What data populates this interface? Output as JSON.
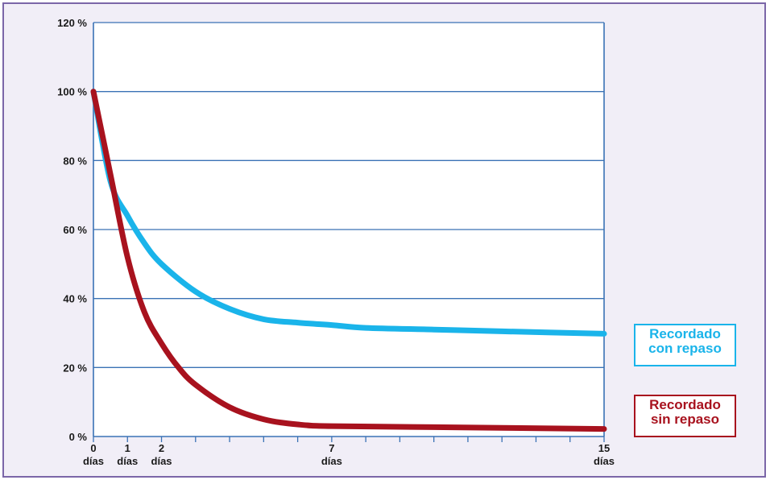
{
  "chart_data": {
    "type": "line",
    "x_ticks": [
      {
        "x": 0,
        "lines": [
          "0",
          "días"
        ]
      },
      {
        "x": 1,
        "lines": [
          "1",
          "días"
        ]
      },
      {
        "x": 2,
        "lines": [
          "2",
          "días"
        ]
      },
      {
        "x": 7,
        "lines": [
          "7",
          "días"
        ]
      },
      {
        "x": 15,
        "lines": [
          "15",
          "días"
        ]
      }
    ],
    "y_ticks": [
      {
        "y": 0,
        "label": "0 %"
      },
      {
        "y": 20,
        "label": "20 %"
      },
      {
        "y": 40,
        "label": "40 %"
      },
      {
        "y": 60,
        "label": "60 %"
      },
      {
        "y": 80,
        "label": "80 %"
      },
      {
        "y": 100,
        "label": "100 %"
      },
      {
        "y": 120,
        "label": "120 %"
      }
    ],
    "xlim": [
      0,
      15
    ],
    "ylim": [
      0,
      120
    ],
    "minor_tick_step_x": 1,
    "grid": true,
    "legend_position": "right",
    "series": [
      {
        "name_lines": [
          "Recordado",
          "con repaso"
        ],
        "color": "#1ab4ea",
        "points": [
          [
            0,
            100
          ],
          [
            0.5,
            74
          ],
          [
            1,
            64
          ],
          [
            1.5,
            56
          ],
          [
            2,
            50
          ],
          [
            3,
            42
          ],
          [
            4,
            37
          ],
          [
            5,
            34
          ],
          [
            6,
            33
          ],
          [
            7,
            32.3
          ],
          [
            8,
            31.5
          ],
          [
            10,
            31
          ],
          [
            12,
            30.5
          ],
          [
            15,
            29.8
          ]
        ]
      },
      {
        "name_lines": [
          "Recordado",
          "sin repaso"
        ],
        "color": "#a8121e",
        "points": [
          [
            0,
            100
          ],
          [
            0.5,
            76
          ],
          [
            1,
            52
          ],
          [
            1.5,
            36
          ],
          [
            2,
            27
          ],
          [
            2.5,
            20
          ],
          [
            3,
            15
          ],
          [
            4,
            8.5
          ],
          [
            5,
            5
          ],
          [
            6,
            3.5
          ],
          [
            7,
            3
          ],
          [
            10,
            2.7
          ],
          [
            15,
            2.2
          ]
        ]
      }
    ]
  }
}
